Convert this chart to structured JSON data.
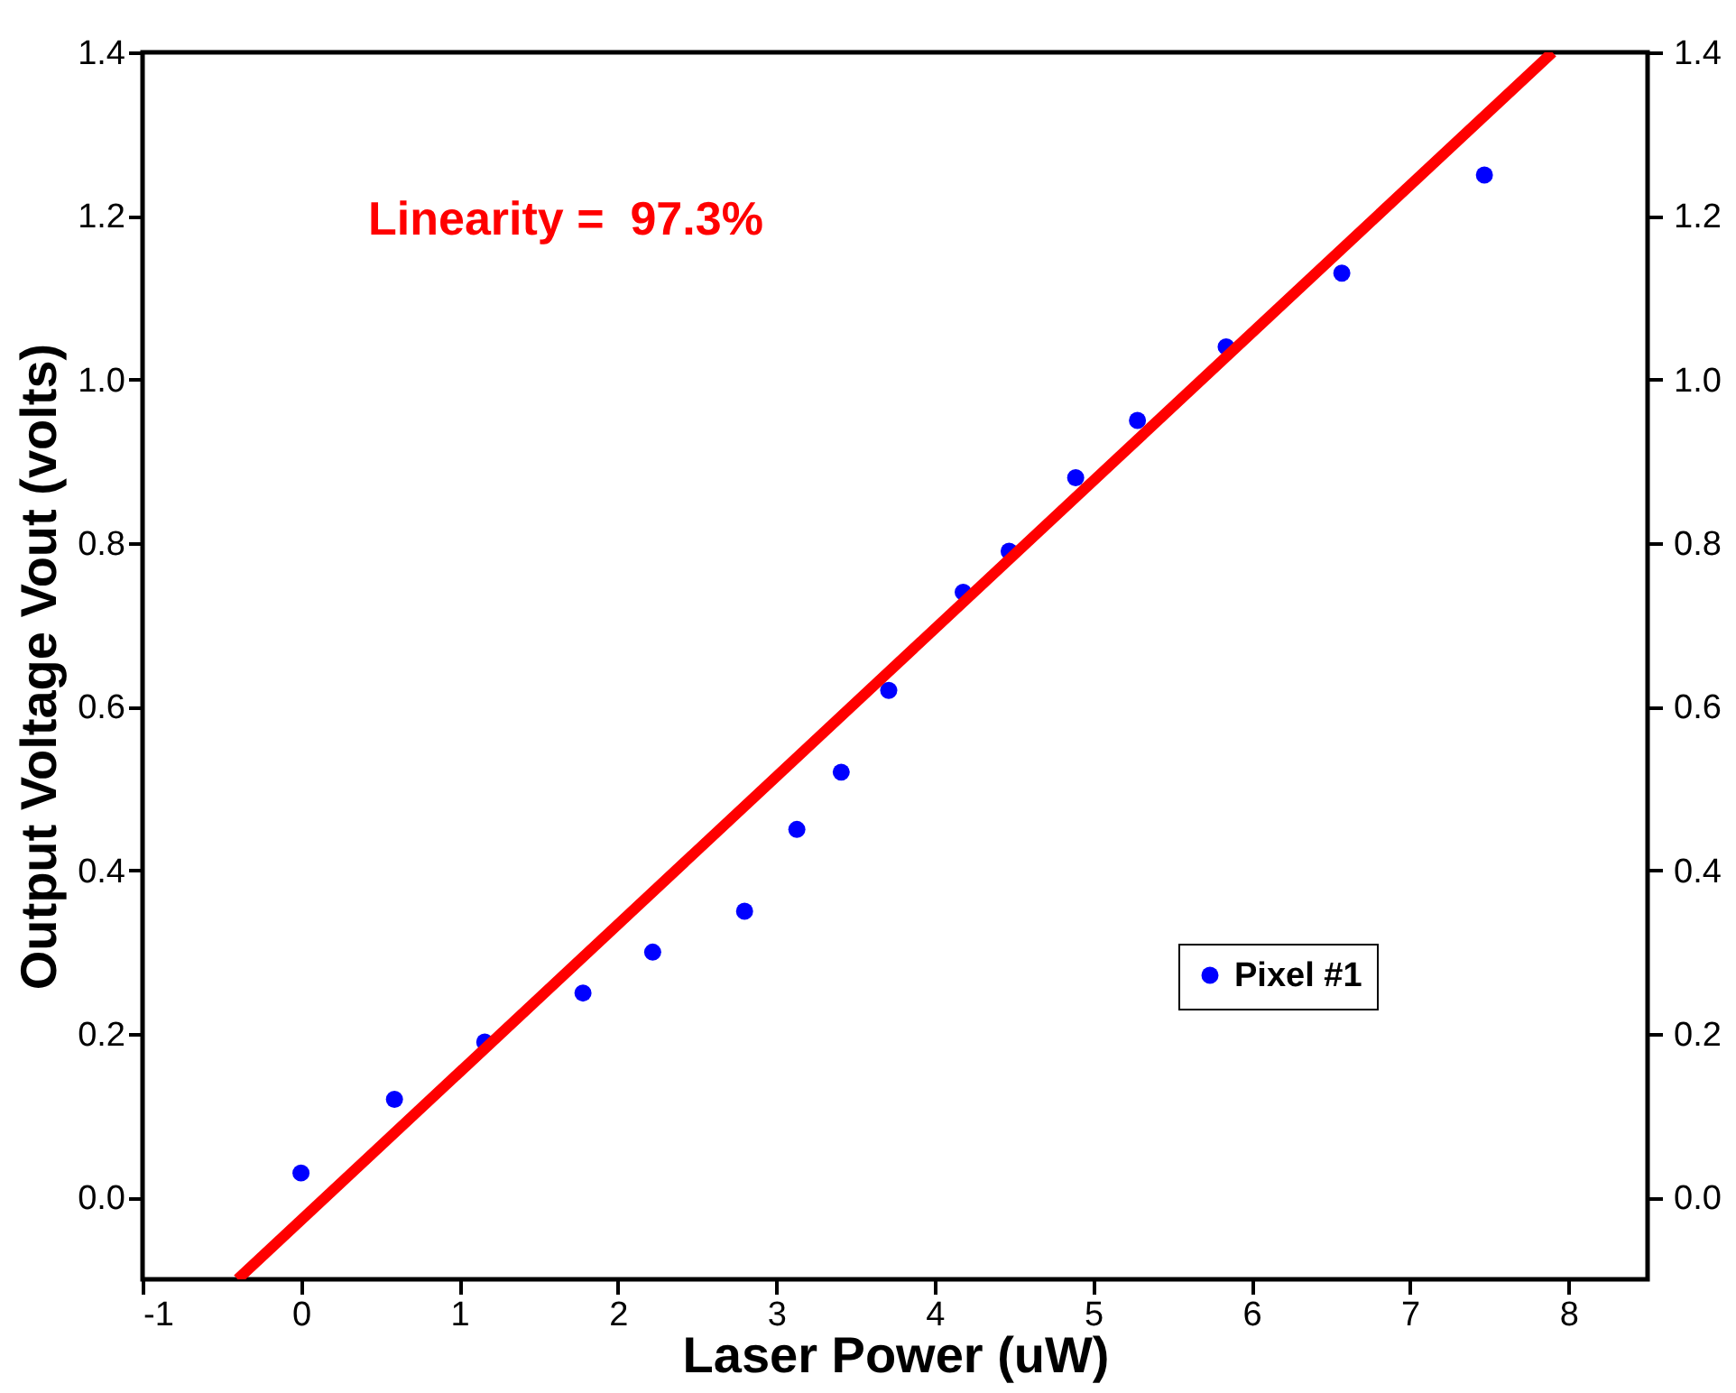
{
  "chart_data": {
    "type": "scatter",
    "xlabel": "Laser Power (uW)",
    "ylabel": "Output Voltage Vout (volts)",
    "annotations": [
      "Linearity =  97.3%"
    ],
    "xlim": [
      -1,
      8.5
    ],
    "xticks": [
      -1,
      0,
      1,
      2,
      3,
      4,
      5,
      6,
      7,
      8
    ],
    "ylim": [
      -0.1,
      1.4
    ],
    "yticks": [
      {
        "value": 0,
        "label": "0.0"
      },
      0.2,
      0.4,
      0.6,
      0.8,
      {
        "value": 1,
        "label": "1.0"
      },
      1.2,
      1.4
    ],
    "y2lim": [
      -0.1,
      1.4
    ],
    "y2ticks": [
      {
        "value": 0,
        "label": "0.0"
      },
      0.2,
      0.4,
      0.6,
      0.8,
      {
        "value": 1,
        "label": "1.0"
      },
      1.2,
      1.4
    ],
    "legend": "bottom right",
    "grid": false,
    "series": [
      {
        "name": "Pixel #1",
        "color": "#0000ff",
        "marker": "circle",
        "x": [
          0,
          0.59,
          1.16,
          1.78,
          2.22,
          2.8,
          3.13,
          3.41,
          3.71,
          4.18,
          4.47,
          4.89,
          5.28,
          5.84,
          6.57,
          7.47
        ],
        "values": [
          0.03,
          0.12,
          0.19,
          0.25,
          0.3,
          0.35,
          0.45,
          0.52,
          0.62,
          0.74,
          0.79,
          0.88,
          0.95,
          1.04,
          1.13,
          1.25
        ]
      },
      {
        "type": "line",
        "color": "#ff0000",
        "line_style": "solid",
        "x": [
          -0.4,
          7.9
        ],
        "values": [
          -0.1,
          1.4
        ]
      }
    ]
  }
}
